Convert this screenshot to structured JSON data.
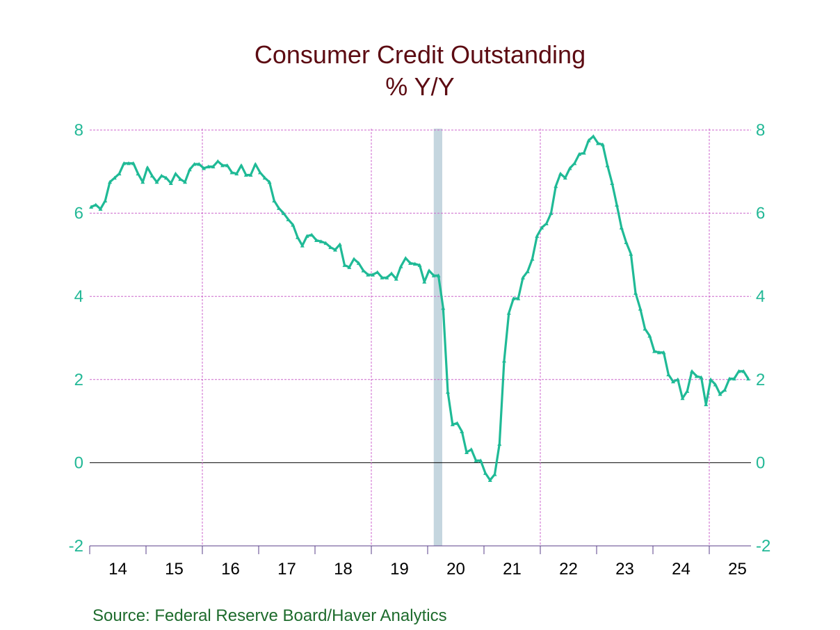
{
  "chart_data": {
    "type": "line",
    "title": "Consumer Credit Outstanding",
    "subtitle": "% Y/Y",
    "source": "Source:  Federal Reserve Board/Haver Analytics",
    "xlabel": "",
    "ylabel": "",
    "ylim": [
      -2,
      8
    ],
    "yticks": [
      "-2",
      "0",
      "2",
      "4",
      "6",
      "8"
    ],
    "xtick_labels": [
      "14",
      "15",
      "16",
      "17",
      "18",
      "19",
      "20",
      "21",
      "22",
      "23",
      "24",
      "25"
    ],
    "frequency": "monthly",
    "start": "2014-01",
    "grid": true,
    "recession_shading": {
      "start": "2020-02",
      "end": "2020-04"
    },
    "colors": {
      "line": "#1fba96",
      "title": "#5c0b12",
      "axis_labels": "#22b896",
      "grid": "#cc66cc",
      "recession": "#c5d6df",
      "source": "#1d6b2c"
    },
    "series": [
      {
        "name": "Consumer Credit Outstanding % Y/Y",
        "values": [
          6.15,
          6.2,
          6.1,
          6.3,
          6.75,
          6.85,
          6.95,
          7.2,
          7.2,
          7.2,
          6.95,
          6.75,
          7.1,
          6.9,
          6.75,
          6.9,
          6.85,
          6.72,
          6.95,
          6.82,
          6.75,
          7.05,
          7.18,
          7.18,
          7.08,
          7.12,
          7.12,
          7.25,
          7.15,
          7.15,
          6.98,
          6.95,
          7.15,
          6.92,
          6.92,
          7.18,
          6.98,
          6.85,
          6.75,
          6.3,
          6.12,
          6.0,
          5.85,
          5.72,
          5.42,
          5.22,
          5.45,
          5.48,
          5.35,
          5.32,
          5.28,
          5.18,
          5.12,
          5.25,
          4.75,
          4.7,
          4.9,
          4.8,
          4.62,
          4.52,
          4.52,
          4.58,
          4.45,
          4.45,
          4.55,
          4.42,
          4.72,
          4.92,
          4.8,
          4.78,
          4.75,
          4.35,
          4.62,
          4.5,
          4.5,
          3.72,
          1.7,
          0.92,
          0.95,
          0.75,
          0.25,
          0.32,
          0.05,
          0.05,
          -0.25,
          -0.42,
          -0.28,
          0.45,
          2.45,
          3.6,
          3.95,
          3.95,
          4.45,
          4.6,
          4.9,
          5.45,
          5.65,
          5.75,
          6.0,
          6.65,
          6.95,
          6.85,
          7.08,
          7.2,
          7.42,
          7.45,
          7.75,
          7.85,
          7.68,
          7.65,
          7.15,
          6.72,
          6.2,
          5.65,
          5.3,
          5.02,
          4.08,
          3.7,
          3.22,
          3.05,
          2.68,
          2.65,
          2.65,
          2.12,
          1.95,
          2.0,
          1.55,
          1.72,
          2.2,
          2.08,
          2.05,
          1.4,
          2.0,
          1.88,
          1.65,
          1.75,
          2.02,
          2.02,
          2.2,
          2.2,
          2.02
        ]
      }
    ]
  }
}
